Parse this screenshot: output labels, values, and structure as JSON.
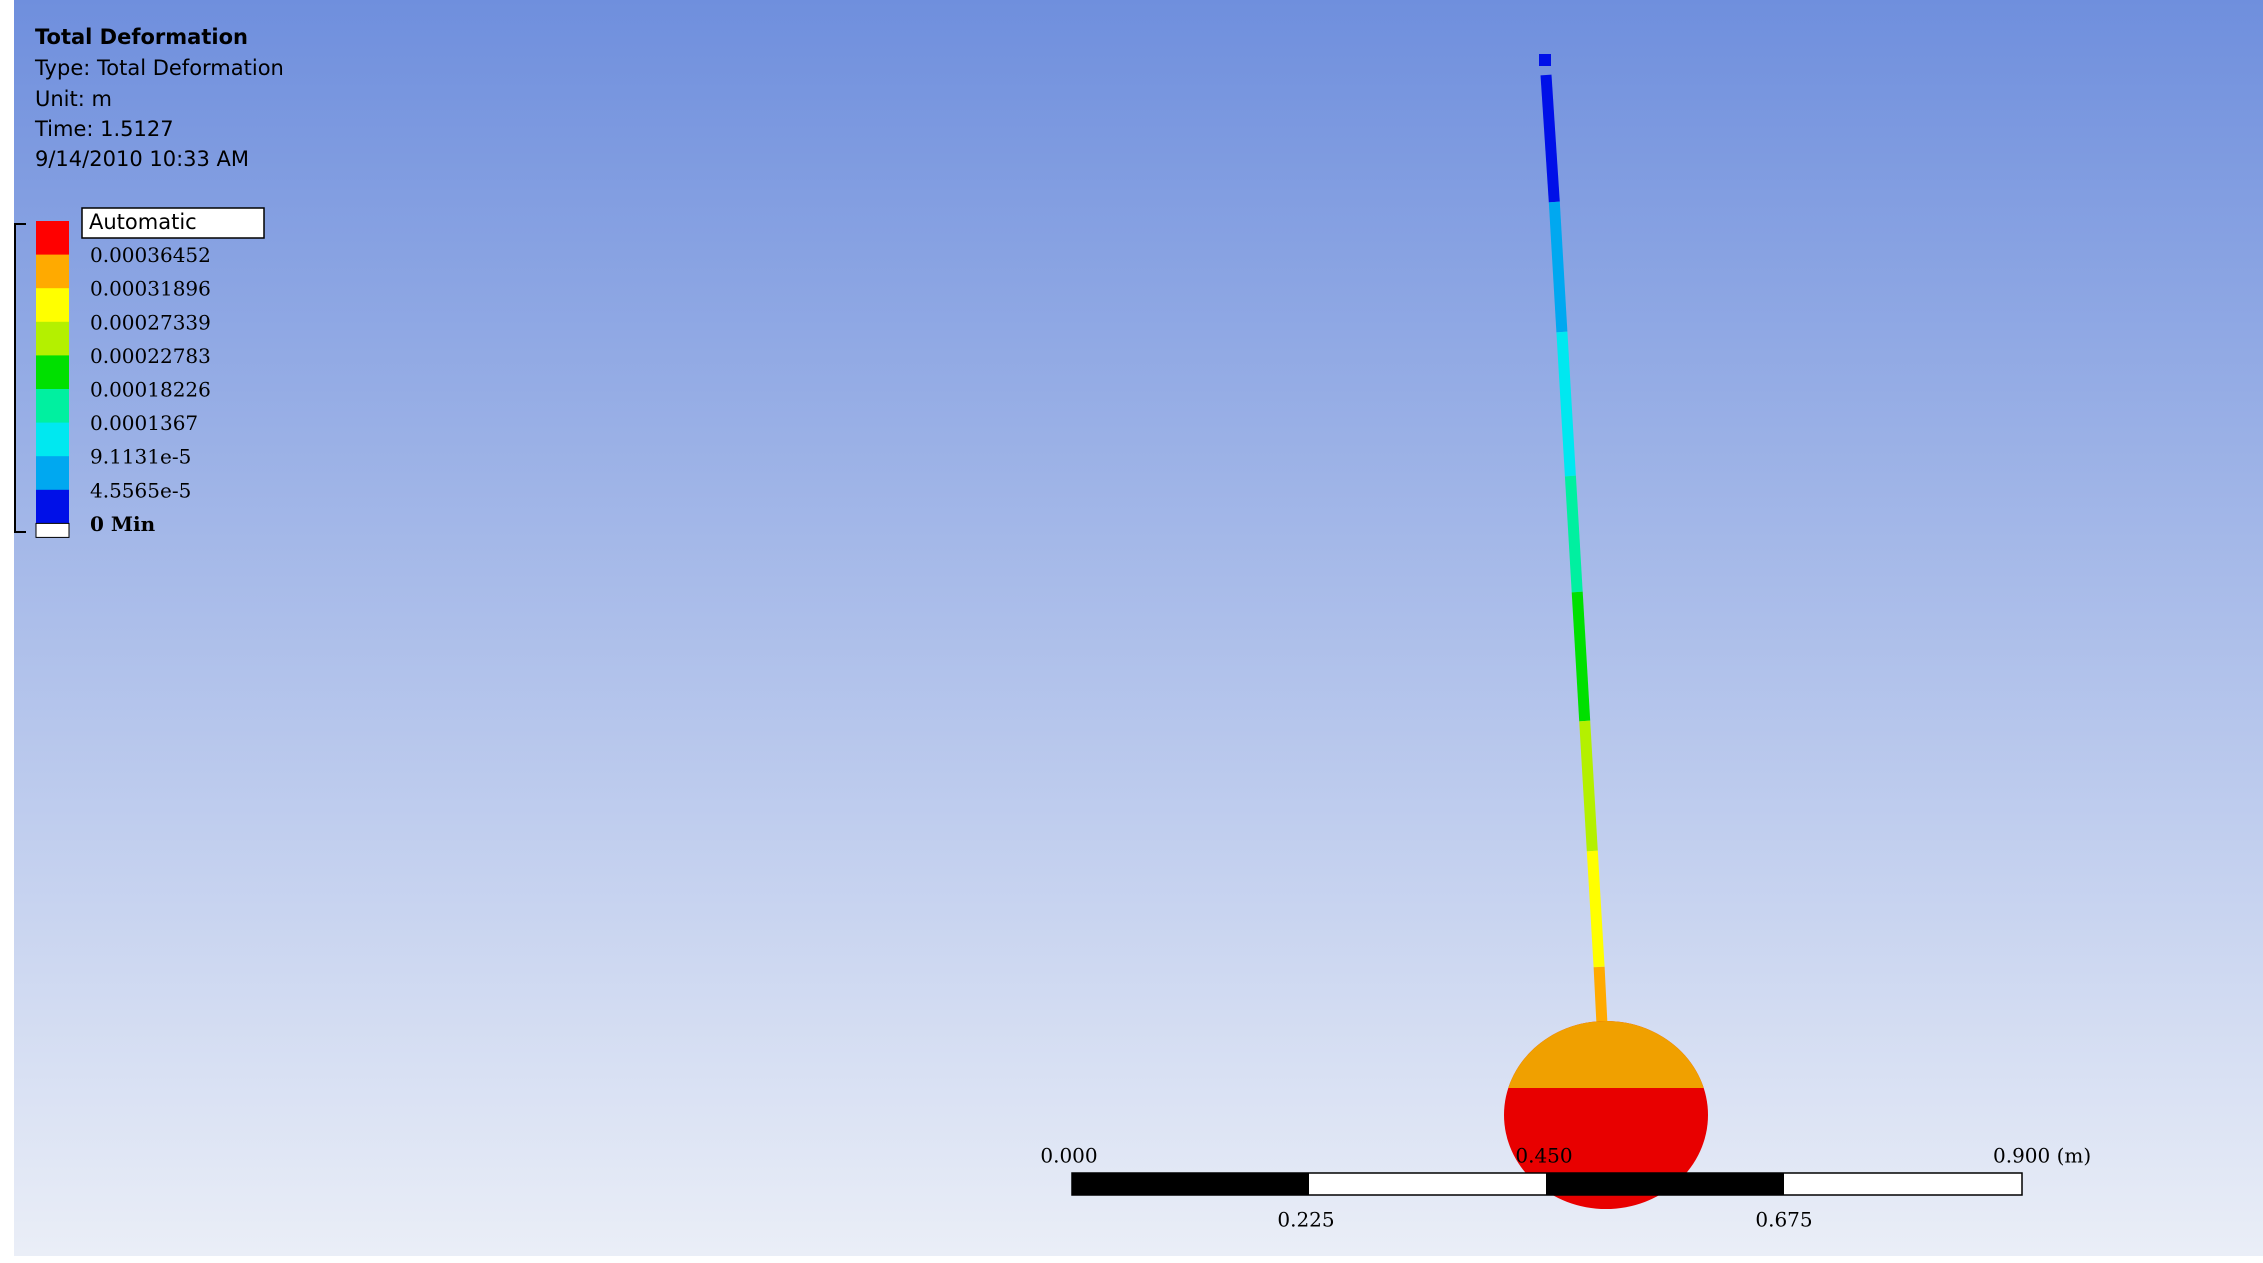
{
  "header": {
    "title": "Total Deformation",
    "lines": [
      "Type: Total Deformation",
      "Unit: m",
      "Time: 1.5127",
      "9/14/2010 10:33 AM"
    ]
  },
  "legend": {
    "mode": "Automatic",
    "labels": [
      "0.00036452",
      "0.00031896",
      "0.00027339",
      "0.00022783",
      "0.00018226",
      "0.0001367",
      "9.1131e-5",
      "4.5565e-5",
      "0 Min"
    ],
    "colors": [
      "#ff0000",
      "#ffaa00",
      "#ffff00",
      "#b4f000",
      "#00e000",
      "#00f0a0",
      "#00e8f0",
      "#00a8f0",
      "#0010e8"
    ]
  },
  "scale_bar": {
    "top_labels": [
      "0.000",
      "0.450",
      "0.900 (m)"
    ],
    "bottom_labels": [
      "0.225",
      "0.675"
    ]
  }
}
